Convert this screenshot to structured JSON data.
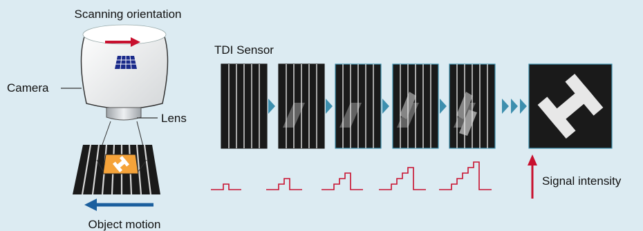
{
  "labels": {
    "scanning_orientation": "Scanning orientation",
    "camera": "Camera",
    "lens": "Lens",
    "object_motion": "Object motion",
    "tdi_sensor": "TDI Sensor",
    "signal_intensity": "Signal intensity"
  },
  "colors": {
    "background": "#dcebf2",
    "arrow_red": "#c8102e",
    "arrow_blue": "#1b5f9e",
    "sensor_dark": "#1a1a1a",
    "chevron_blue": "#3d8fae",
    "object_orange": "#f5a33a"
  },
  "icons": [
    "camera-icon",
    "sensor-grid-icon",
    "lens-icon",
    "scan-arrow-icon",
    "object-motion-arrow-icon",
    "signal-intensity-arrow-icon"
  ],
  "tdi_stages": 5,
  "signal_steps": [
    1,
    2,
    3,
    4,
    5
  ]
}
